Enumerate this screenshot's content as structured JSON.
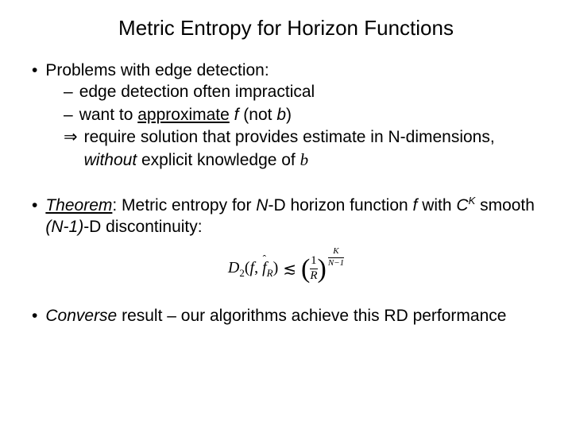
{
  "title": "Metric Entropy for Horizon Functions",
  "section1": {
    "heading": "Problems with edge detection:",
    "sub1": "edge detection often impractical",
    "sub2_a": "want to ",
    "sub2_b": "approximate",
    "sub2_c": " f",
    "sub2_d": " (not ",
    "sub2_e": "b",
    "sub2_f": ")",
    "sub3_arrow": "⇒",
    "sub3_a": "require solution that provides estimate in N-dimensions, ",
    "sub3_b": "without",
    "sub3_c": " explicit knowledge of ",
    "sub3_d": "b"
  },
  "section2": {
    "theorem_label": "Theorem",
    "text_a": ": Metric entropy for ",
    "text_b": "N",
    "text_c": "-D horizon function ",
    "text_d": "f",
    "text_e": " with ",
    "text_f": "C",
    "text_g": "K",
    "text_h": " smooth ",
    "text_i": "(N-1)",
    "text_j": "-D discontinuity:"
  },
  "formula": {
    "D": "D",
    "two": "2",
    "open": "(",
    "f": "f",
    "comma": ", ",
    "fhat": "f",
    "R": "R",
    "close": ")",
    "lesssim": "≲",
    "lparen": "(",
    "one": "1",
    "Rden": "R",
    "rparen": ")",
    "K": "K",
    "Nm1": "N−1"
  },
  "section3": {
    "converse": "Converse",
    "rest": " result – our algorithms achieve this RD performance"
  },
  "colors": {
    "bg": "#ffffff",
    "text": "#000000"
  }
}
